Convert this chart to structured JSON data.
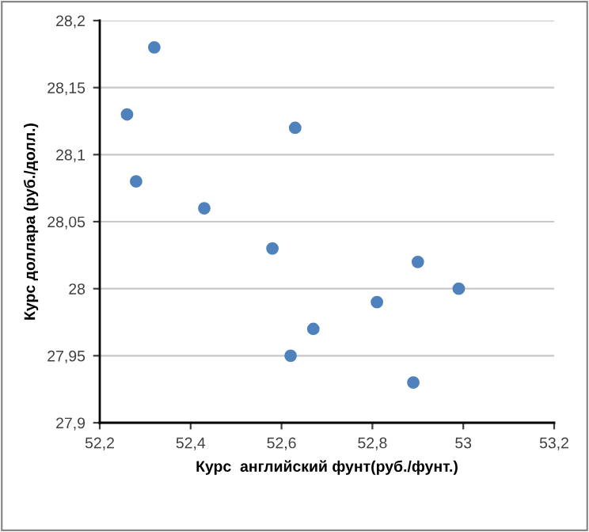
{
  "chart_data": {
    "type": "scatter",
    "xlabel": "Курс  английский фунт(руб./фунт.)",
    "ylabel": "Курс доллара (руб./долл.)",
    "x": [
      52.32,
      52.26,
      52.28,
      52.63,
      52.43,
      52.58,
      52.9,
      52.99,
      52.81,
      52.67,
      52.62,
      52.89
    ],
    "values": [
      28.18,
      28.13,
      28.08,
      28.12,
      28.06,
      28.03,
      28.02,
      28.0,
      27.99,
      27.97,
      27.95,
      27.93
    ],
    "color": "#4f81bd",
    "marker": "circle",
    "xlim": [
      52.2,
      53.2
    ],
    "xticks": [
      {
        "value": 52.2,
        "label": "52,2"
      },
      {
        "value": 52.4,
        "label": "52,4"
      },
      {
        "value": 52.6,
        "label": "52,6"
      },
      {
        "value": 52.8,
        "label": "52,8"
      },
      53,
      {
        "value": 53.2,
        "label": "53,2"
      }
    ],
    "ylim": [
      27.9,
      28.2
    ],
    "yticks": [
      {
        "value": 27.9,
        "label": "27,9"
      },
      {
        "value": 27.95,
        "label": "27,95"
      },
      28,
      {
        "value": 28.05,
        "label": "28,05"
      },
      {
        "value": 28.1,
        "label": "28,1"
      },
      {
        "value": 28.15,
        "label": "28,15"
      },
      {
        "value": 28.2,
        "label": "28,2"
      }
    ],
    "grid": "y"
  }
}
